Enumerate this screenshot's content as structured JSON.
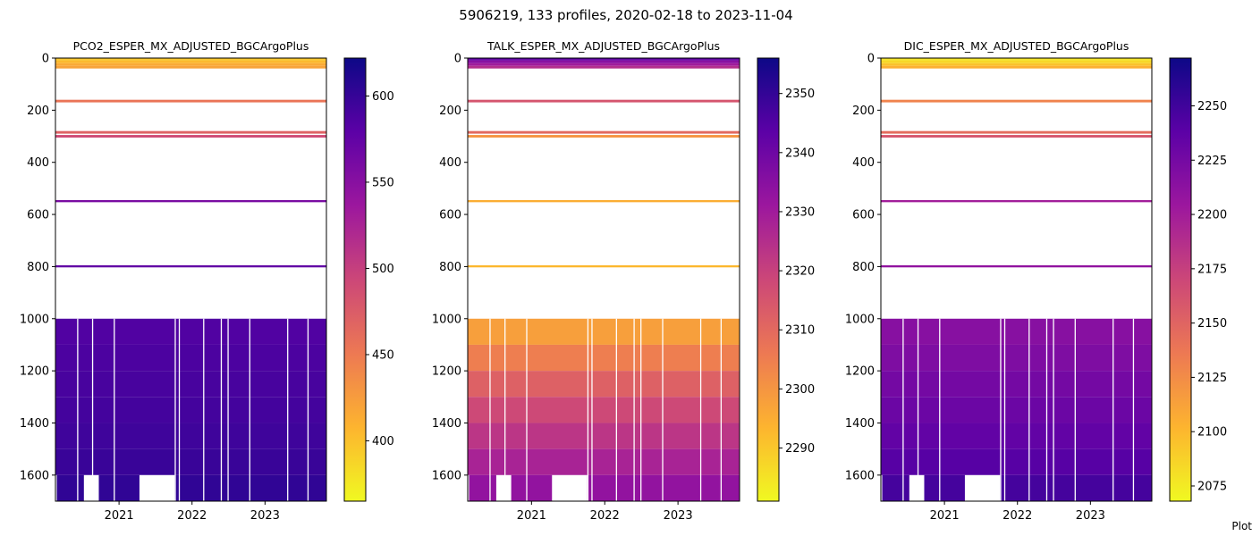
{
  "figure": {
    "suptitle": "5906219, 133 profiles, 2020-02-18 to 2023-11-04",
    "footer": "Plot"
  },
  "colors": {
    "background": "#ffffff",
    "axes_edge": "#000000",
    "colormap": "plasma_r",
    "colormap_stops": [
      "#f0f921",
      "#fdb42f",
      "#ed7953",
      "#cc4778",
      "#9c179e",
      "#5c01a6",
      "#0d0887"
    ]
  },
  "chart_data": [
    {
      "type": "heatmap",
      "title": "PCO2_ESPER_MX_ADJUSTED_BGCArgoPlus",
      "x_type": "date",
      "xlim": [
        "2020-02-18",
        "2023-11-04"
      ],
      "x_ticks": [
        "2021",
        "2022",
        "2023"
      ],
      "ylim": [
        1700,
        0
      ],
      "y_inverted": true,
      "y_ticks": [
        0,
        200,
        400,
        600,
        800,
        1000,
        1200,
        1400,
        1600
      ],
      "colorbar": {
        "min": 365,
        "max": 622,
        "ticks": [
          400,
          450,
          500,
          550,
          600
        ],
        "cmap": "plasma_r"
      },
      "depth_bands": [
        {
          "depth_start": 0,
          "depth_end": 5,
          "value": 395
        },
        {
          "depth_start": 5,
          "depth_end": 10,
          "value": 398
        },
        {
          "depth_start": 10,
          "depth_end": 20,
          "value": 405
        },
        {
          "depth_start": 20,
          "depth_end": 30,
          "value": 415
        },
        {
          "depth_start": 30,
          "depth_end": 40,
          "value": 420
        },
        {
          "depth_start": 160,
          "depth_end": 170,
          "value": 455
        },
        {
          "depth_start": 280,
          "depth_end": 290,
          "value": 470
        },
        {
          "depth_start": 295,
          "depth_end": 305,
          "value": 490
        },
        {
          "depth_start": 545,
          "depth_end": 553,
          "value": 560
        },
        {
          "depth_start": 795,
          "depth_end": 803,
          "value": 575
        },
        {
          "depth_start": 1000,
          "depth_end": 1100,
          "value": 585
        },
        {
          "depth_start": 1100,
          "depth_end": 1200,
          "value": 588
        },
        {
          "depth_start": 1200,
          "depth_end": 1300,
          "value": 590
        },
        {
          "depth_start": 1300,
          "depth_end": 1400,
          "value": 592
        },
        {
          "depth_start": 1400,
          "depth_end": 1500,
          "value": 595
        },
        {
          "depth_start": 1500,
          "depth_end": 1600,
          "value": 598
        },
        {
          "depth_start": 1600,
          "depth_end": 1700,
          "value": 603
        }
      ]
    },
    {
      "type": "heatmap",
      "title": "TALK_ESPER_MX_ADJUSTED_BGCArgoPlus",
      "x_type": "date",
      "xlim": [
        "2020-02-18",
        "2023-11-04"
      ],
      "x_ticks": [
        "2021",
        "2022",
        "2023"
      ],
      "ylim": [
        1700,
        0
      ],
      "y_inverted": true,
      "y_ticks": [
        0,
        200,
        400,
        600,
        800,
        1000,
        1200,
        1400,
        1600
      ],
      "colorbar": {
        "min": 2281,
        "max": 2356,
        "ticks": [
          2290,
          2300,
          2310,
          2320,
          2330,
          2340,
          2350
        ],
        "cmap": "plasma_r"
      },
      "depth_bands": [
        {
          "depth_start": 0,
          "depth_end": 5,
          "value": 2345
        },
        {
          "depth_start": 5,
          "depth_end": 10,
          "value": 2340
        },
        {
          "depth_start": 10,
          "depth_end": 20,
          "value": 2335
        },
        {
          "depth_start": 20,
          "depth_end": 30,
          "value": 2330
        },
        {
          "depth_start": 30,
          "depth_end": 40,
          "value": 2325
        },
        {
          "depth_start": 160,
          "depth_end": 170,
          "value": 2315
        },
        {
          "depth_start": 280,
          "depth_end": 290,
          "value": 2310
        },
        {
          "depth_start": 295,
          "depth_end": 305,
          "value": 2300
        },
        {
          "depth_start": 545,
          "depth_end": 553,
          "value": 2295
        },
        {
          "depth_start": 795,
          "depth_end": 803,
          "value": 2293
        },
        {
          "depth_start": 1000,
          "depth_end": 1100,
          "value": 2298
        },
        {
          "depth_start": 1100,
          "depth_end": 1200,
          "value": 2305
        },
        {
          "depth_start": 1200,
          "depth_end": 1300,
          "value": 2312
        },
        {
          "depth_start": 1300,
          "depth_end": 1400,
          "value": 2318
        },
        {
          "depth_start": 1400,
          "depth_end": 1500,
          "value": 2323
        },
        {
          "depth_start": 1500,
          "depth_end": 1600,
          "value": 2328
        },
        {
          "depth_start": 1600,
          "depth_end": 1700,
          "value": 2333
        }
      ]
    },
    {
      "type": "heatmap",
      "title": "DIC_ESPER_MX_ADJUSTED_BGCArgoPlus",
      "x_type": "date",
      "xlim": [
        "2020-02-18",
        "2023-11-04"
      ],
      "x_ticks": [
        "2021",
        "2022",
        "2023"
      ],
      "ylim": [
        1700,
        0
      ],
      "y_inverted": true,
      "y_ticks": [
        0,
        200,
        400,
        600,
        800,
        1000,
        1200,
        1400,
        1600
      ],
      "colorbar": {
        "min": 2068,
        "max": 2272,
        "ticks": [
          2075,
          2100,
          2125,
          2150,
          2175,
          2200,
          2225,
          2250
        ],
        "cmap": "plasma_r"
      },
      "depth_bands": [
        {
          "depth_start": 0,
          "depth_end": 5,
          "value": 2078
        },
        {
          "depth_start": 5,
          "depth_end": 10,
          "value": 2080
        },
        {
          "depth_start": 10,
          "depth_end": 20,
          "value": 2085
        },
        {
          "depth_start": 20,
          "depth_end": 30,
          "value": 2095
        },
        {
          "depth_start": 30,
          "depth_end": 40,
          "value": 2105
        },
        {
          "depth_start": 160,
          "depth_end": 170,
          "value": 2130
        },
        {
          "depth_start": 280,
          "depth_end": 290,
          "value": 2145
        },
        {
          "depth_start": 295,
          "depth_end": 305,
          "value": 2160
        },
        {
          "depth_start": 545,
          "depth_end": 553,
          "value": 2200
        },
        {
          "depth_start": 795,
          "depth_end": 803,
          "value": 2210
        },
        {
          "depth_start": 1000,
          "depth_end": 1100,
          "value": 2215
        },
        {
          "depth_start": 1100,
          "depth_end": 1200,
          "value": 2220
        },
        {
          "depth_start": 1200,
          "depth_end": 1300,
          "value": 2225
        },
        {
          "depth_start": 1300,
          "depth_end": 1400,
          "value": 2230
        },
        {
          "depth_start": 1400,
          "depth_end": 1500,
          "value": 2235
        },
        {
          "depth_start": 1500,
          "depth_end": 1600,
          "value": 2240
        },
        {
          "depth_start": 1600,
          "depth_end": 1700,
          "value": 2248
        }
      ]
    }
  ]
}
